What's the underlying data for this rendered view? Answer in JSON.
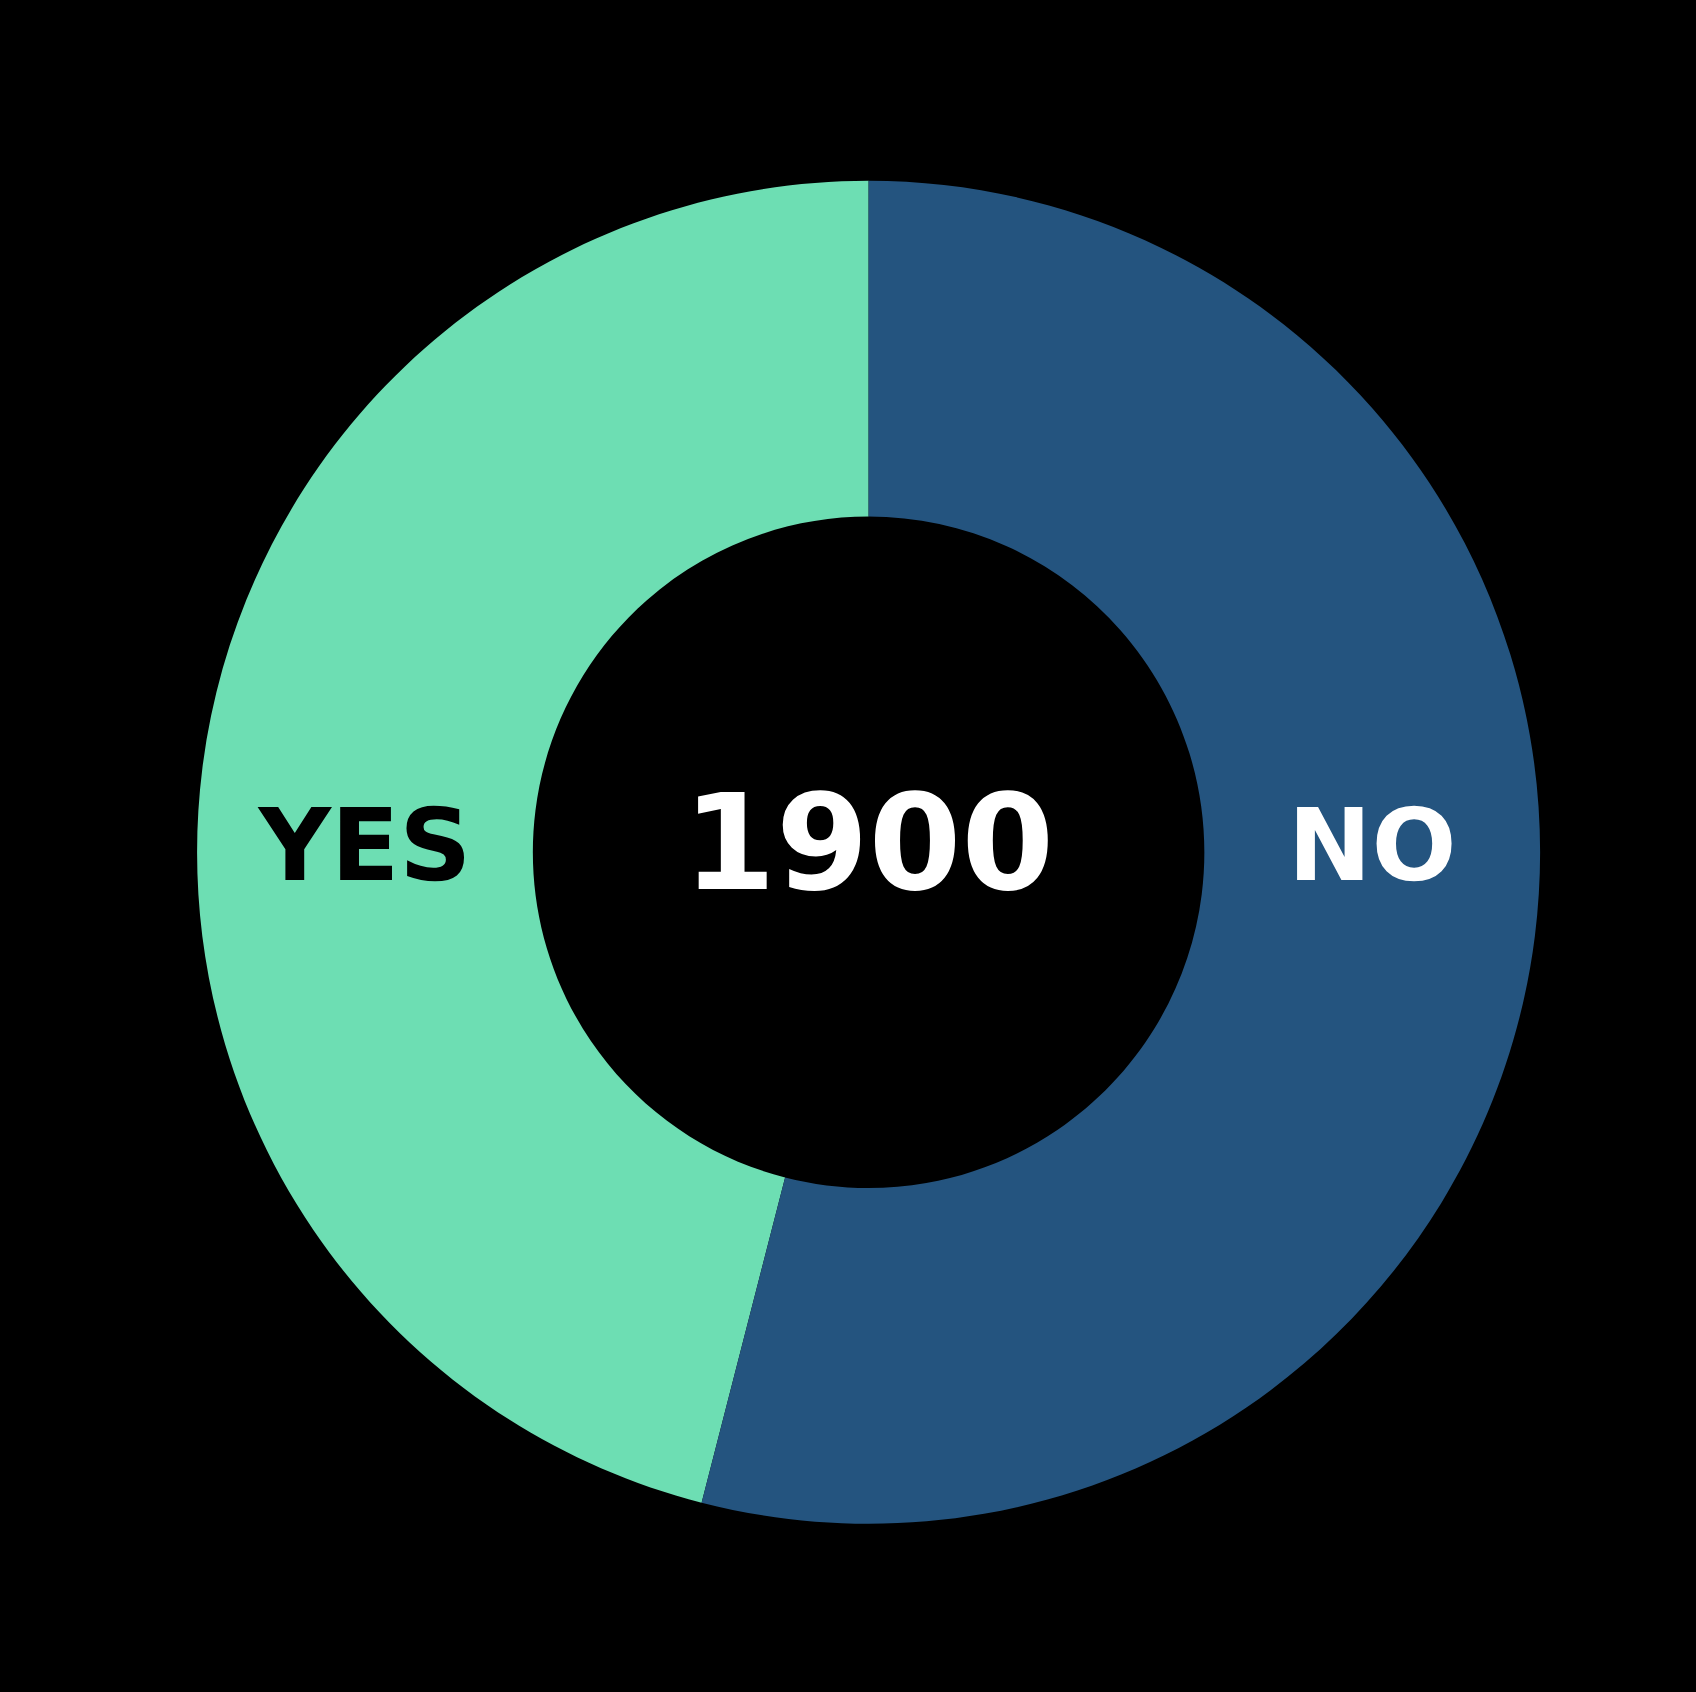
{
  "chart_data": {
    "type": "donut",
    "categories": [
      "YES",
      "NO"
    ],
    "values": [
      46,
      54
    ],
    "colors": [
      "#6ddeb3",
      "#24547f"
    ],
    "annotations": [
      "1900"
    ],
    "legend": false
  }
}
